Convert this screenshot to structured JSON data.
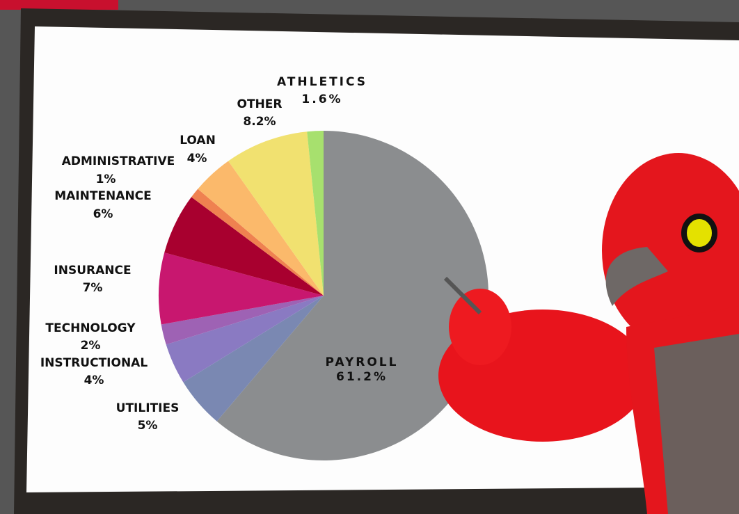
{
  "chart_data": {
    "type": "pie",
    "categories": [
      "PAYROLL",
      "UTILITIES",
      "INSTRUCTIONAL",
      "TECHNOLOGY",
      "INSURANCE",
      "MAINTENANCE",
      "ADMINISTRATIVE",
      "LOAN",
      "OTHER",
      "ATHLETICS"
    ],
    "values": [
      61.2,
      5,
      4,
      2,
      7,
      6,
      1,
      4,
      8.2,
      1.6
    ],
    "value_labels": [
      "61.2%",
      "5%",
      "4%",
      "2%",
      "7%",
      "6%",
      "1%",
      "4%",
      "8.2%",
      "1.6%"
    ],
    "colors": [
      "#8b8d8f",
      "#7a88b2",
      "#8a7ac2",
      "#9e62b4",
      "#c8176f",
      "#a8002f",
      "#ef8150",
      "#fbb96b",
      "#f1e170",
      "#a7e06e"
    ]
  }
}
